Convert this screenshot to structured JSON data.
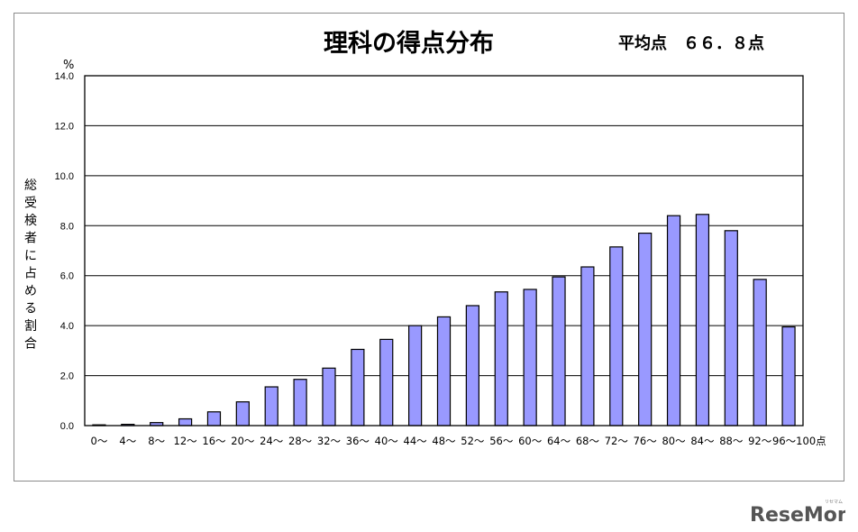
{
  "chart_data": {
    "type": "bar",
    "title": "理科の得点分布",
    "subtitle": "平均点　６６．８点",
    "ylabel": "総受検者に占める割合",
    "yunit": "%",
    "ylim": [
      0,
      14
    ],
    "yticks": [
      "0.0",
      "2.0",
      "4.0",
      "6.0",
      "8.0",
      "10.0",
      "12.0",
      "14.0"
    ],
    "grid": true,
    "categories": [
      "0〜",
      "4〜",
      "8〜",
      "12〜",
      "16〜",
      "20〜",
      "24〜",
      "28〜",
      "32〜",
      "36〜",
      "40〜",
      "44〜",
      "48〜",
      "52〜",
      "56〜",
      "60〜",
      "64〜",
      "68〜",
      "72〜",
      "76〜",
      "80〜",
      "84〜",
      "88〜",
      "92〜",
      "96〜100点"
    ],
    "values": [
      0.03,
      0.05,
      0.12,
      0.27,
      0.55,
      0.95,
      1.55,
      1.85,
      2.3,
      3.05,
      3.45,
      4.0,
      4.35,
      4.8,
      5.35,
      5.45,
      5.95,
      6.35,
      7.15,
      7.7,
      8.4,
      8.45,
      7.8,
      5.85,
      3.95
    ],
    "bar_color": "#9999ff"
  },
  "watermark": {
    "text": "ReseMom",
    "ruby": "リセマム"
  }
}
